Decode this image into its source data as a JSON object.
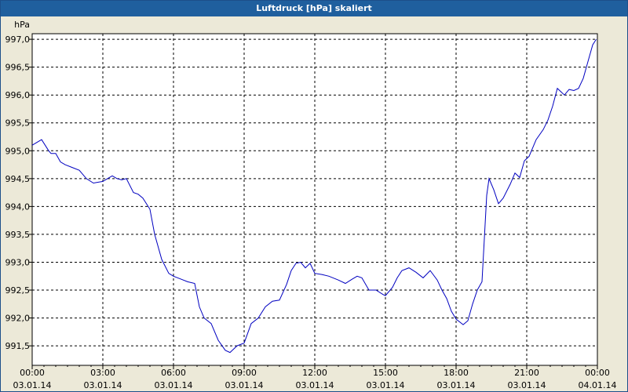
{
  "window": {
    "title": "Luftdruck [hPa] skaliert"
  },
  "colors": {
    "title_bar": "#1f5f9e",
    "background": "#ece9d8",
    "plot_area": "#ffffff",
    "line": "#0000c0",
    "grid": "#000000"
  },
  "chart_data": {
    "type": "line",
    "title": "Luftdruck [hPa] skaliert",
    "ylabel": "hPa",
    "xlabel": "",
    "ylim": [
      991.15,
      997.1
    ],
    "xlim": [
      0,
      24
    ],
    "grid": true,
    "legend": "none",
    "y_ticks": [
      {
        "value": 991.5,
        "label": "991,5"
      },
      {
        "value": 992.0,
        "label": "992,0"
      },
      {
        "value": 992.5,
        "label": "992,5"
      },
      {
        "value": 993.0,
        "label": "993,0"
      },
      {
        "value": 993.5,
        "label": "993,5"
      },
      {
        "value": 994.0,
        "label": "994,0"
      },
      {
        "value": 994.5,
        "label": "994,5"
      },
      {
        "value": 995.0,
        "label": "995,0"
      },
      {
        "value": 995.5,
        "label": "995,5"
      },
      {
        "value": 996.0,
        "label": "996,0"
      },
      {
        "value": 996.5,
        "label": "996,5"
      },
      {
        "value": 997.0,
        "label": "997,0"
      }
    ],
    "x_ticks": [
      {
        "value": 0,
        "time": "00:00",
        "date": "03.01.14"
      },
      {
        "value": 3,
        "time": "03:00",
        "date": "03.01.14"
      },
      {
        "value": 6,
        "time": "06:00",
        "date": "03.01.14"
      },
      {
        "value": 9,
        "time": "09:00",
        "date": "03.01.14"
      },
      {
        "value": 12,
        "time": "12:00",
        "date": "03.01.14"
      },
      {
        "value": 15,
        "time": "15:00",
        "date": "03.01.14"
      },
      {
        "value": 18,
        "time": "18:00",
        "date": "03.01.14"
      },
      {
        "value": 21,
        "time": "21:00",
        "date": "03.01.14"
      },
      {
        "value": 24,
        "time": "00:00",
        "date": "04.01.14"
      }
    ],
    "series": [
      {
        "name": "",
        "x": [
          0,
          0.4,
          0.7,
          0.8,
          1.0,
          1.2,
          1.4,
          1.7,
          2.0,
          2.3,
          2.6,
          3.0,
          3.2,
          3.4,
          3.6,
          3.8,
          4.0,
          4.3,
          4.5,
          4.7,
          5.0,
          5.2,
          5.5,
          5.8,
          6.0,
          6.3,
          6.6,
          6.9,
          7.1,
          7.3,
          7.6,
          7.9,
          8.2,
          8.4,
          8.5,
          8.7,
          9.0,
          9.3,
          9.6,
          9.9,
          10.2,
          10.5,
          10.8,
          11.0,
          11.2,
          11.4,
          11.6,
          11.8,
          12.0,
          12.3,
          12.6,
          13.0,
          13.3,
          13.6,
          13.8,
          14.0,
          14.3,
          14.6,
          14.9,
          15.0,
          15.3,
          15.5,
          15.7,
          16.0,
          16.3,
          16.6,
          16.9,
          17.2,
          17.4,
          17.6,
          17.8,
          18.0,
          18.3,
          18.5,
          18.7,
          18.9,
          19.1,
          19.3,
          19.4,
          19.6,
          19.8,
          20.0,
          20.3,
          20.5,
          20.7,
          20.9,
          21.1,
          21.4,
          21.7,
          21.9,
          22.1,
          22.3,
          22.6,
          22.8,
          23.0,
          23.2,
          23.4,
          23.6,
          23.8,
          23.95
        ],
        "values": [
          995.1,
          995.2,
          995.0,
          994.95,
          994.95,
          994.8,
          994.75,
          994.7,
          994.65,
          994.5,
          994.42,
          994.45,
          994.5,
          994.55,
          994.5,
          994.48,
          994.5,
          994.25,
          994.22,
          994.15,
          993.95,
          993.5,
          993.05,
          992.8,
          992.75,
          992.7,
          992.65,
          992.62,
          992.2,
          992.0,
          991.9,
          991.6,
          991.42,
          991.38,
          991.42,
          991.5,
          991.55,
          991.9,
          992.0,
          992.2,
          992.3,
          992.32,
          992.6,
          992.85,
          992.98,
          993.0,
          992.9,
          992.98,
          992.8,
          992.78,
          992.75,
          992.68,
          992.62,
          992.7,
          992.75,
          992.72,
          992.5,
          992.5,
          992.42,
          992.4,
          992.55,
          992.72,
          992.85,
          992.9,
          992.82,
          992.72,
          992.85,
          992.68,
          992.5,
          992.35,
          992.12,
          991.98,
          991.88,
          991.95,
          992.25,
          992.5,
          992.65,
          994.2,
          994.5,
          994.3,
          994.05,
          994.15,
          994.4,
          994.6,
          994.52,
          994.82,
          994.9,
          995.2,
          995.38,
          995.55,
          995.8,
          996.12,
          996.0,
          996.1,
          996.08,
          996.12,
          996.3,
          996.6,
          996.9,
          997.0
        ]
      }
    ]
  }
}
